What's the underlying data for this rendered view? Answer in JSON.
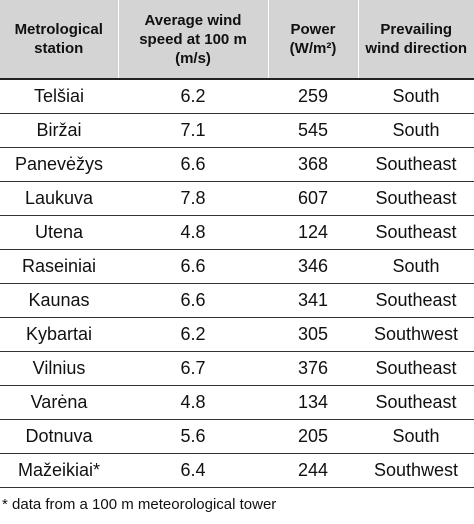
{
  "table": {
    "header": [
      [
        "Metrological",
        "station"
      ],
      [
        "Average wind",
        "speed at 100 m",
        "(m/s)"
      ],
      [
        "Power",
        "(W/m²)"
      ],
      [
        "Prevailing",
        "wind direction"
      ]
    ],
    "rows": [
      [
        "Telšiai",
        "6.2",
        "259",
        "South"
      ],
      [
        "Biržai",
        "7.1",
        "545",
        "South"
      ],
      [
        "Panevėžys",
        "6.6",
        "368",
        "Southeast"
      ],
      [
        "Laukuva",
        "7.8",
        "607",
        "Southeast"
      ],
      [
        "Utena",
        "4.8",
        "124",
        "Southeast"
      ],
      [
        "Raseiniai",
        "6.6",
        "346",
        "South"
      ],
      [
        "Kaunas",
        "6.6",
        "341",
        "Southeast"
      ],
      [
        "Kybartai",
        "6.2",
        "305",
        "Southwest"
      ],
      [
        "Vilnius",
        "6.7",
        "376",
        "Southeast"
      ],
      [
        "Varėna",
        "4.8",
        "134",
        "Southeast"
      ],
      [
        "Dotnuva",
        "5.6",
        "205",
        "South"
      ],
      [
        "Mažeikiai*",
        "6.4",
        "244",
        "Southwest"
      ]
    ]
  },
  "footnote": "* data from a 100 m meteorological tower"
}
